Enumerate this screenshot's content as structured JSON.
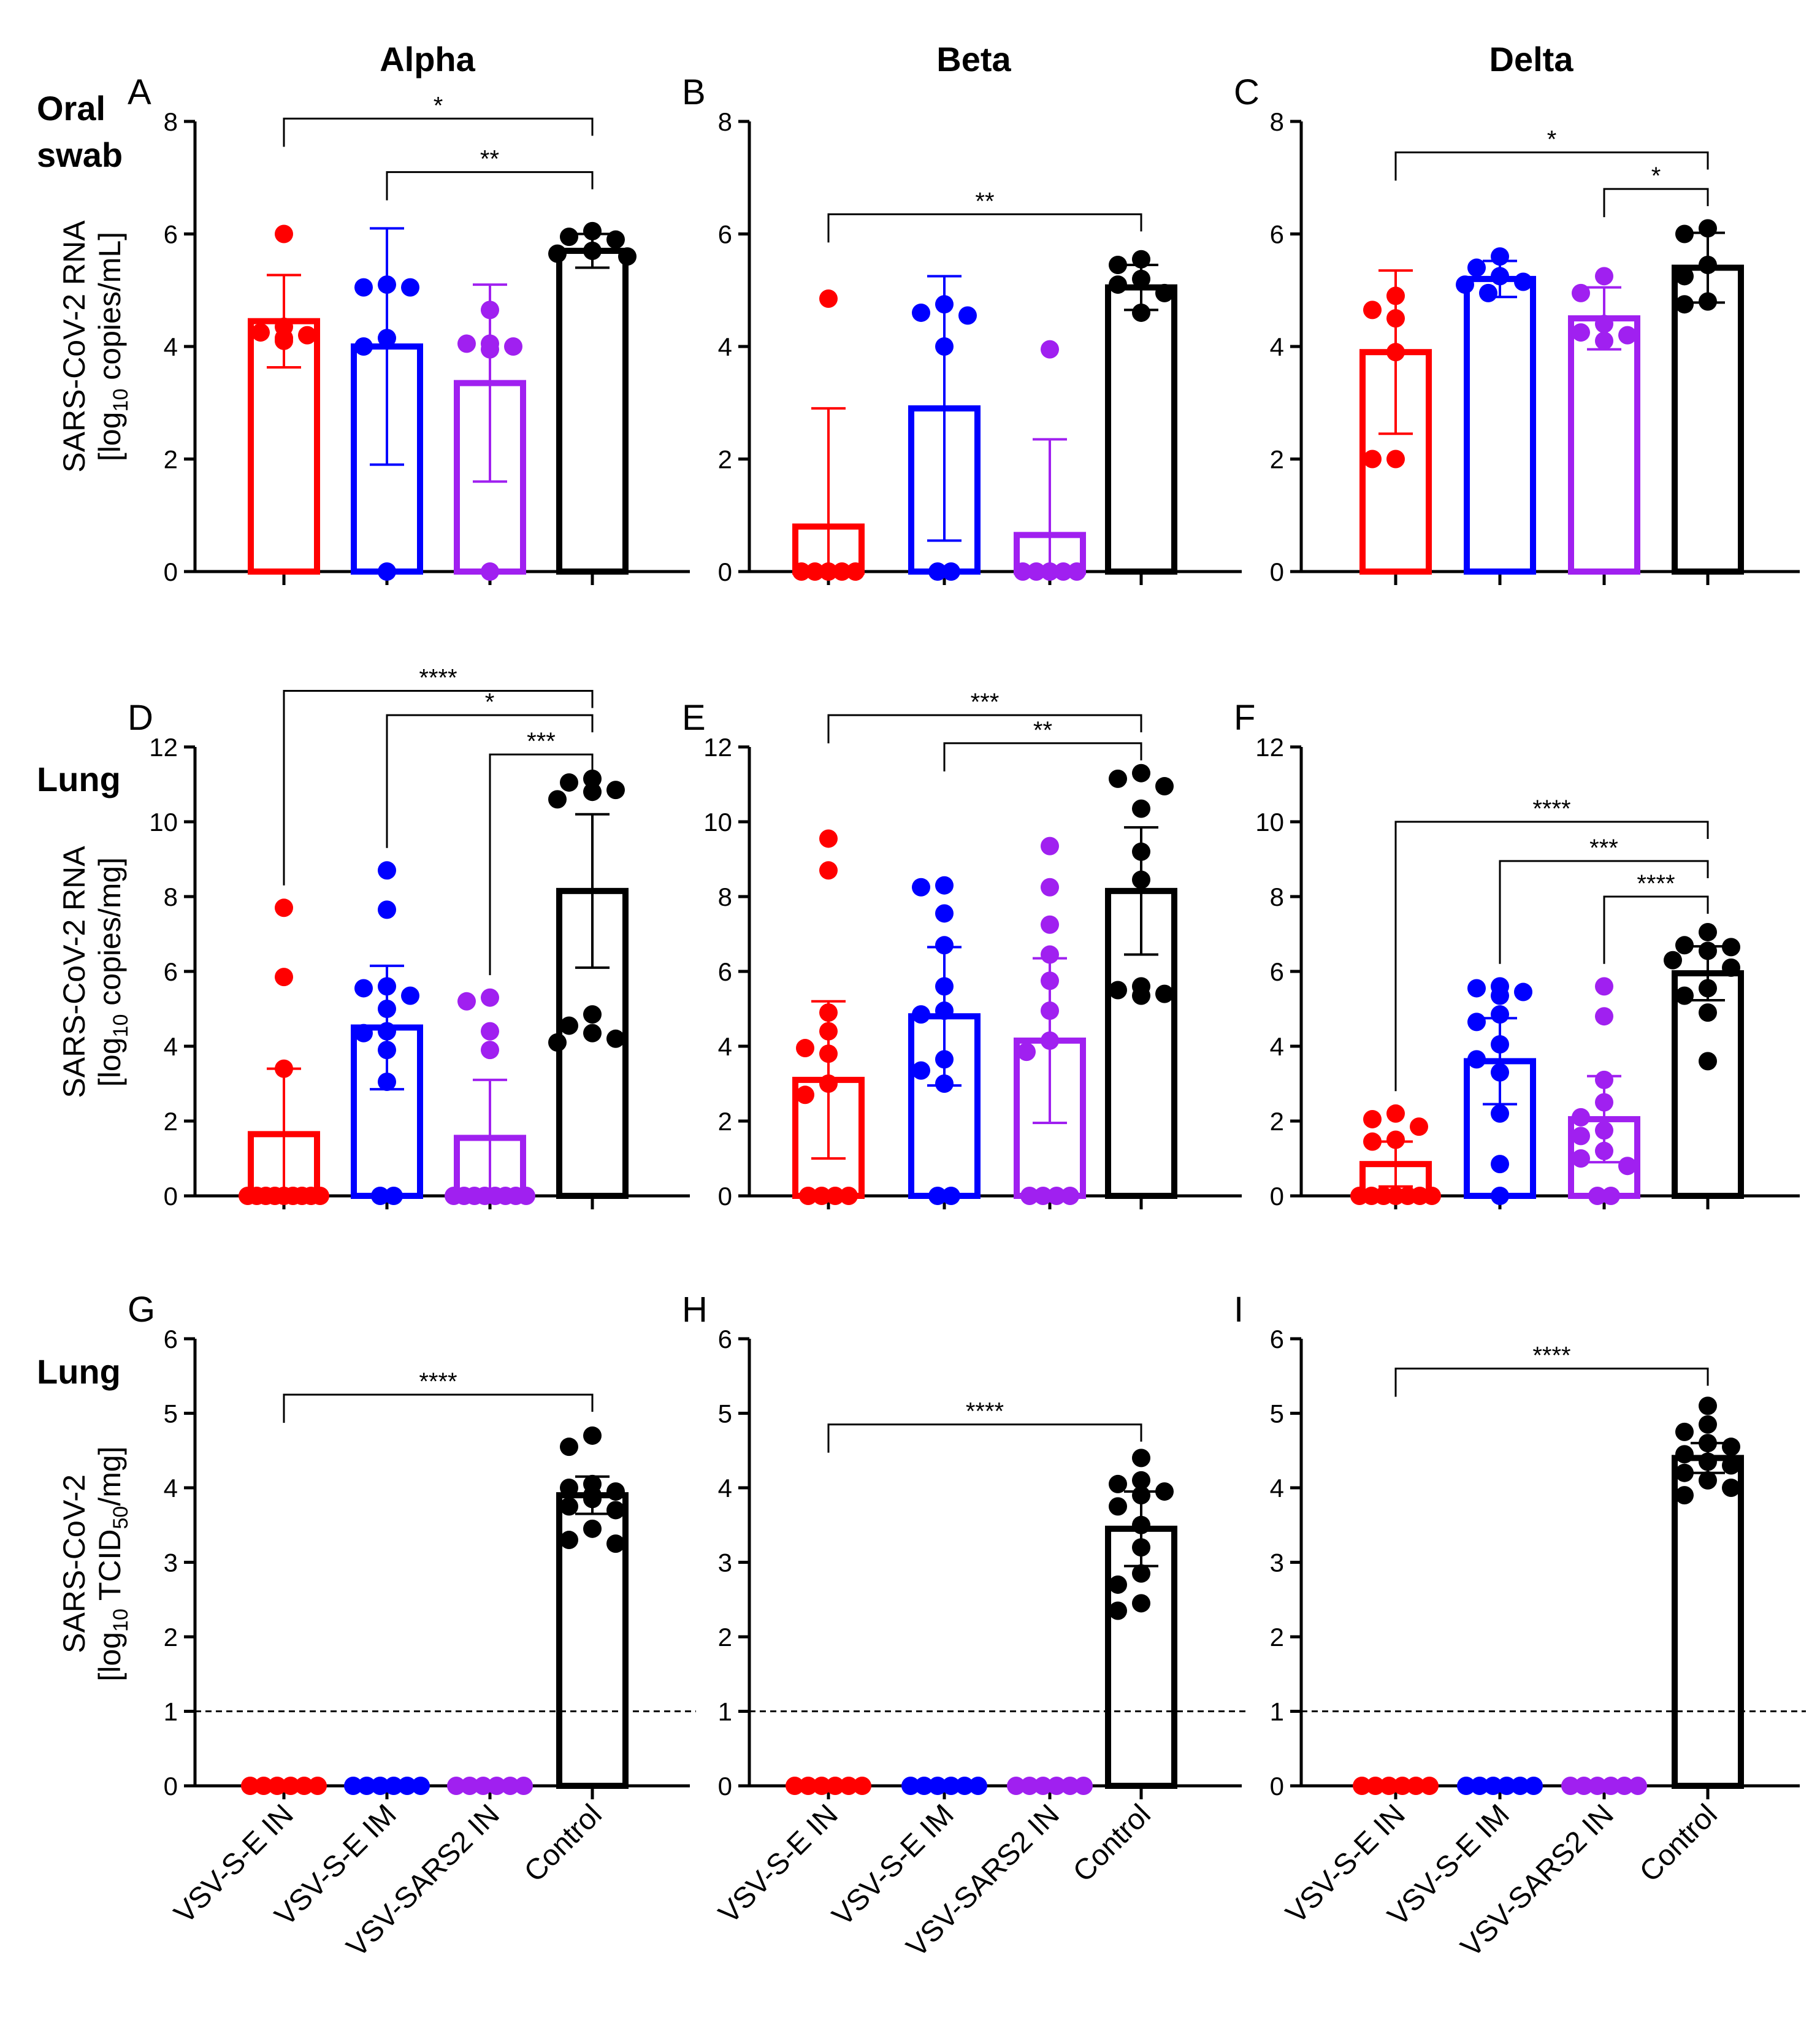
{
  "chart_data": {
    "column_titles": [
      "Alpha",
      "Beta",
      "Delta"
    ],
    "row_titles": [
      "Oral\nswab",
      "Lung",
      "Lung"
    ],
    "y_labels": [
      [
        "SARS-CoV-2 RNA",
        "[log",
        "10",
        " copies/mL]"
      ],
      [
        "SARS-CoV-2 RNA",
        "[log",
        "10",
        " copies/mg]"
      ],
      [
        "SARS-CoV-2",
        "[log",
        "10",
        " TCID",
        "50",
        "/mg]"
      ]
    ],
    "categories": [
      "VSV-S-E IN",
      "VSV-S-E IM",
      "VSV-SARS2 IN",
      "Control"
    ],
    "colors": [
      "#ff0000",
      "#0000ff",
      "#a020f0",
      "#000000"
    ],
    "panels": [
      {
        "label": "A",
        "row": 0,
        "col": 0,
        "type": "bar",
        "ylim": [
          0,
          8
        ],
        "yticks": [
          0,
          2,
          4,
          6,
          8
        ],
        "means": [
          4.45,
          4.0,
          3.35,
          5.7
        ],
        "sd": [
          0.82,
          2.1,
          1.75,
          0.3
        ],
        "points": [
          [
            6.0,
            4.35,
            4.25,
            4.15,
            4.2,
            4.1
          ],
          [
            5.1,
            5.05,
            5.05,
            4.15,
            4.0,
            0
          ],
          [
            4.65,
            4.05,
            4.05,
            4.0,
            3.95,
            0
          ],
          [
            6.05,
            5.95,
            5.9,
            5.7,
            5.65,
            5.6
          ]
        ],
        "sig": [
          {
            "a": 0,
            "b": 3,
            "y": 8.05,
            "label": "*"
          },
          {
            "a": 1,
            "b": 3,
            "y": 7.1,
            "label": "**"
          }
        ]
      },
      {
        "label": "B",
        "row": 0,
        "col": 1,
        "type": "bar",
        "ylim": [
          0,
          8
        ],
        "yticks": [
          0,
          2,
          4,
          6,
          8
        ],
        "means": [
          0.8,
          2.9,
          0.65,
          5.05
        ],
        "sd": [
          2.1,
          2.35,
          1.7,
          0.4
        ],
        "points": [
          [
            4.85,
            0,
            0,
            0,
            0,
            0
          ],
          [
            4.75,
            4.6,
            4.55,
            4.0,
            0,
            0
          ],
          [
            3.95,
            0,
            0,
            0,
            0,
            0
          ],
          [
            5.55,
            5.45,
            5.2,
            5.1,
            4.95,
            4.6
          ]
        ],
        "sig": [
          {
            "a": 0,
            "b": 3,
            "y": 6.35,
            "label": "**"
          }
        ]
      },
      {
        "label": "C",
        "row": 0,
        "col": 2,
        "type": "bar",
        "ylim": [
          0,
          8
        ],
        "yticks": [
          0,
          2,
          4,
          6,
          8
        ],
        "means": [
          3.9,
          5.2,
          4.5,
          5.4
        ],
        "sd": [
          1.45,
          0.32,
          0.55,
          0.62
        ],
        "points": [
          [
            4.9,
            4.65,
            4.5,
            3.9,
            2.0,
            2.0
          ],
          [
            5.6,
            5.4,
            5.25,
            5.15,
            5.1,
            4.95
          ],
          [
            5.25,
            4.95,
            4.4,
            4.25,
            4.2,
            4.1
          ],
          [
            6.1,
            6.0,
            5.45,
            5.25,
            4.8,
            4.75
          ]
        ],
        "sig": [
          {
            "a": 0,
            "b": 3,
            "y": 7.45,
            "label": "*"
          },
          {
            "a": 2,
            "b": 3,
            "y": 6.8,
            "label": "*"
          }
        ]
      },
      {
        "label": "D",
        "row": 1,
        "col": 0,
        "type": "bar",
        "ylim": [
          0,
          12
        ],
        "yticks": [
          0,
          2,
          4,
          6,
          8,
          10,
          12
        ],
        "means": [
          1.65,
          4.5,
          1.55,
          8.15
        ],
        "sd": [
          1.75,
          1.65,
          1.55,
          2.05
        ],
        "points": [
          [
            7.7,
            5.85,
            3.4,
            0,
            0,
            0,
            0,
            0,
            0,
            0,
            0,
            0
          ],
          [
            8.7,
            7.65,
            5.6,
            5.55,
            5.35,
            5.0,
            4.4,
            4.35,
            3.9,
            3.05,
            0,
            0
          ],
          [
            5.3,
            5.2,
            4.4,
            3.9,
            0,
            0,
            0,
            0,
            0,
            0,
            0,
            0
          ],
          [
            11.15,
            11.05,
            10.85,
            10.8,
            10.6,
            4.85,
            4.55,
            4.35,
            4.2,
            4.1
          ]
        ],
        "sig": [
          {
            "a": 0,
            "b": 3,
            "y": 13.5,
            "label": "****"
          },
          {
            "a": 1,
            "b": 3,
            "y": 12.85,
            "label": "*"
          },
          {
            "a": 2,
            "b": 3,
            "y": 11.8,
            "label": "***"
          }
        ]
      },
      {
        "label": "E",
        "row": 1,
        "col": 1,
        "type": "bar",
        "ylim": [
          0,
          12
        ],
        "yticks": [
          0,
          2,
          4,
          6,
          8,
          10,
          12
        ],
        "means": [
          3.1,
          4.8,
          4.15,
          8.15
        ],
        "sd": [
          2.1,
          1.85,
          2.2,
          1.7
        ],
        "points": [
          [
            9.55,
            8.7,
            4.9,
            4.4,
            3.95,
            3.8,
            3.0,
            2.7,
            0,
            0,
            0,
            0
          ],
          [
            8.3,
            8.25,
            7.55,
            6.7,
            5.6,
            4.95,
            4.85,
            3.65,
            3.35,
            3.0,
            0,
            0
          ],
          [
            9.35,
            8.25,
            7.25,
            6.45,
            5.75,
            4.95,
            4.15,
            3.85,
            0,
            0,
            0,
            0
          ],
          [
            11.3,
            11.15,
            10.95,
            10.35,
            9.2,
            8.45,
            5.6,
            5.5,
            5.4,
            5.35
          ]
        ],
        "sig": [
          {
            "a": 0,
            "b": 3,
            "y": 12.85,
            "label": "***"
          },
          {
            "a": 1,
            "b": 3,
            "y": 12.1,
            "label": "**"
          }
        ]
      },
      {
        "label": "F",
        "row": 1,
        "col": 2,
        "type": "bar",
        "ylim": [
          0,
          12
        ],
        "yticks": [
          0,
          2,
          4,
          6,
          8,
          10,
          12
        ],
        "means": [
          0.85,
          3.6,
          2.05,
          5.95
        ],
        "sd": [
          0.6,
          1.15,
          1.15,
          0.72
        ],
        "points": [
          [
            2.2,
            2.05,
            1.85,
            1.5,
            1.45,
            0,
            0,
            0,
            0,
            0,
            0,
            0
          ],
          [
            5.6,
            5.55,
            5.45,
            5.35,
            4.85,
            4.65,
            4.05,
            3.65,
            3.3,
            2.2,
            0.85,
            0
          ],
          [
            5.6,
            4.8,
            3.1,
            2.5,
            2.1,
            1.75,
            1.6,
            1.2,
            1.0,
            0.8,
            0,
            0
          ],
          [
            7.05,
            6.7,
            6.65,
            6.55,
            6.3,
            6.1,
            5.55,
            5.35,
            4.9,
            3.6
          ]
        ],
        "sig": [
          {
            "a": 0,
            "b": 3,
            "y": 10.0,
            "label": "****"
          },
          {
            "a": 1,
            "b": 3,
            "y": 8.95,
            "label": "***"
          },
          {
            "a": 2,
            "b": 3,
            "y": 8.0,
            "label": "****"
          }
        ]
      },
      {
        "label": "G",
        "row": 2,
        "col": 0,
        "type": "bar",
        "ylim": [
          0,
          6
        ],
        "yticks": [
          0,
          1,
          2,
          3,
          4,
          5,
          6
        ],
        "lod": 1,
        "means": [
          0,
          0,
          0,
          3.9
        ],
        "sd": [
          0,
          0,
          0,
          0.25
        ],
        "points": [
          [
            0,
            0,
            0,
            0,
            0,
            0
          ],
          [
            0,
            0,
            0,
            0,
            0,
            0
          ],
          [
            0,
            0,
            0,
            0,
            0,
            0
          ],
          [
            4.7,
            4.55,
            4.05,
            4.0,
            3.95,
            3.9,
            3.85,
            3.75,
            3.7,
            3.45,
            3.3,
            3.25
          ]
        ],
        "sig": [
          {
            "a": 0,
            "b": 3,
            "y": 5.25,
            "label": "****"
          }
        ]
      },
      {
        "label": "H",
        "row": 2,
        "col": 1,
        "type": "bar",
        "ylim": [
          0,
          6
        ],
        "yticks": [
          0,
          1,
          2,
          3,
          4,
          5,
          6
        ],
        "lod": 1,
        "means": [
          0,
          0,
          0,
          3.45
        ],
        "sd": [
          0,
          0,
          0,
          0.5
        ],
        "points": [
          [
            0,
            0,
            0,
            0,
            0,
            0
          ],
          [
            0,
            0,
            0,
            0,
            0,
            0
          ],
          [
            0,
            0,
            0,
            0,
            0,
            0
          ],
          [
            4.4,
            4.1,
            4.05,
            3.95,
            3.9,
            3.75,
            3.5,
            3.2,
            2.85,
            2.7,
            2.45,
            2.35
          ]
        ],
        "sig": [
          {
            "a": 0,
            "b": 3,
            "y": 4.85,
            "label": "****"
          }
        ]
      },
      {
        "label": "I",
        "row": 2,
        "col": 2,
        "type": "bar",
        "ylim": [
          0,
          6
        ],
        "yticks": [
          0,
          1,
          2,
          3,
          4,
          5,
          6
        ],
        "lod": 1,
        "means": [
          0,
          0,
          0,
          4.4
        ],
        "sd": [
          0,
          0,
          0,
          0.2
        ],
        "points": [
          [
            0,
            0,
            0,
            0,
            0,
            0
          ],
          [
            0,
            0,
            0,
            0,
            0,
            0
          ],
          [
            0,
            0,
            0,
            0,
            0,
            0
          ],
          [
            5.1,
            4.85,
            4.75,
            4.6,
            4.55,
            4.45,
            4.35,
            4.3,
            4.2,
            4.1,
            4.0,
            3.9
          ]
        ],
        "sig": [
          {
            "a": 0,
            "b": 3,
            "y": 5.6,
            "label": "****"
          }
        ]
      }
    ]
  }
}
